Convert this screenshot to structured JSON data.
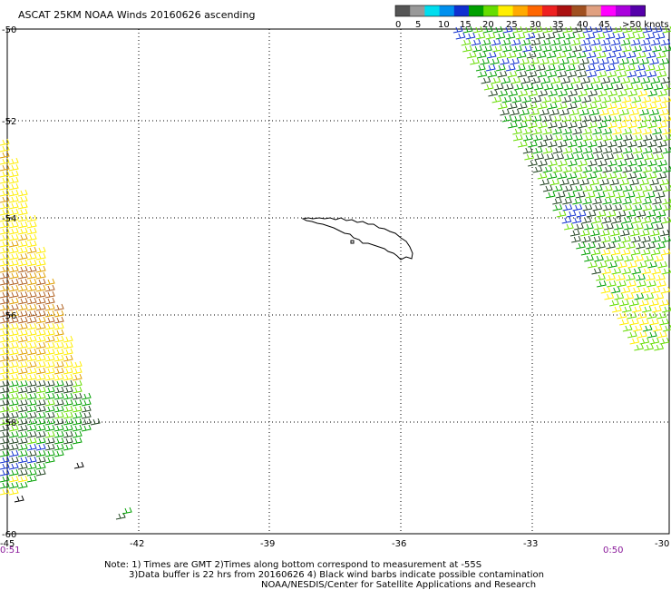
{
  "title": "ASCAT 25KM NOAA Winds 20160626 ascending",
  "legend": {
    "colors": [
      "#555555",
      "#999999",
      "#00ddee",
      "#0090ee",
      "#1030d0",
      "#00a000",
      "#66dd00",
      "#ffee00",
      "#ffaa00",
      "#ff6600",
      "#ee2020",
      "#aa1010",
      "#a05020",
      "#e0a080",
      "#ff00ff",
      "#aa00dd",
      "#5500aa"
    ],
    "labels": [
      "0",
      "5",
      "10",
      "15",
      "20",
      "25",
      "30",
      "35",
      "40",
      "45",
      ">50 knots"
    ]
  },
  "axes": {
    "lat_labels": [
      "-50",
      "-52",
      "-54",
      "-56",
      "-58",
      "-60"
    ],
    "lon_labels": [
      "-45",
      "-42",
      "-39",
      "-36",
      "-33",
      "-30"
    ]
  },
  "times": {
    "left": "0:51",
    "right": "0:50"
  },
  "notes": [
    "Note: 1) Times are GMT 2)Times along bottom correspond to measurement at -55S",
    "3)Data buffer is 22 hrs from 20160626 4) Black wind barbs indicate possible contamination",
    "NOAA/NESDIS/Center for Satellite Applications and Research"
  ],
  "map_meta": {
    "island": "South Georgia",
    "wind_colors": {
      "blue": "#1030d0",
      "green": "#00a000",
      "light_green": "#66dd00",
      "yellow": "#ffee00",
      "orange": "#e0a000",
      "brown": "#b06020",
      "dark": "#224422"
    }
  }
}
